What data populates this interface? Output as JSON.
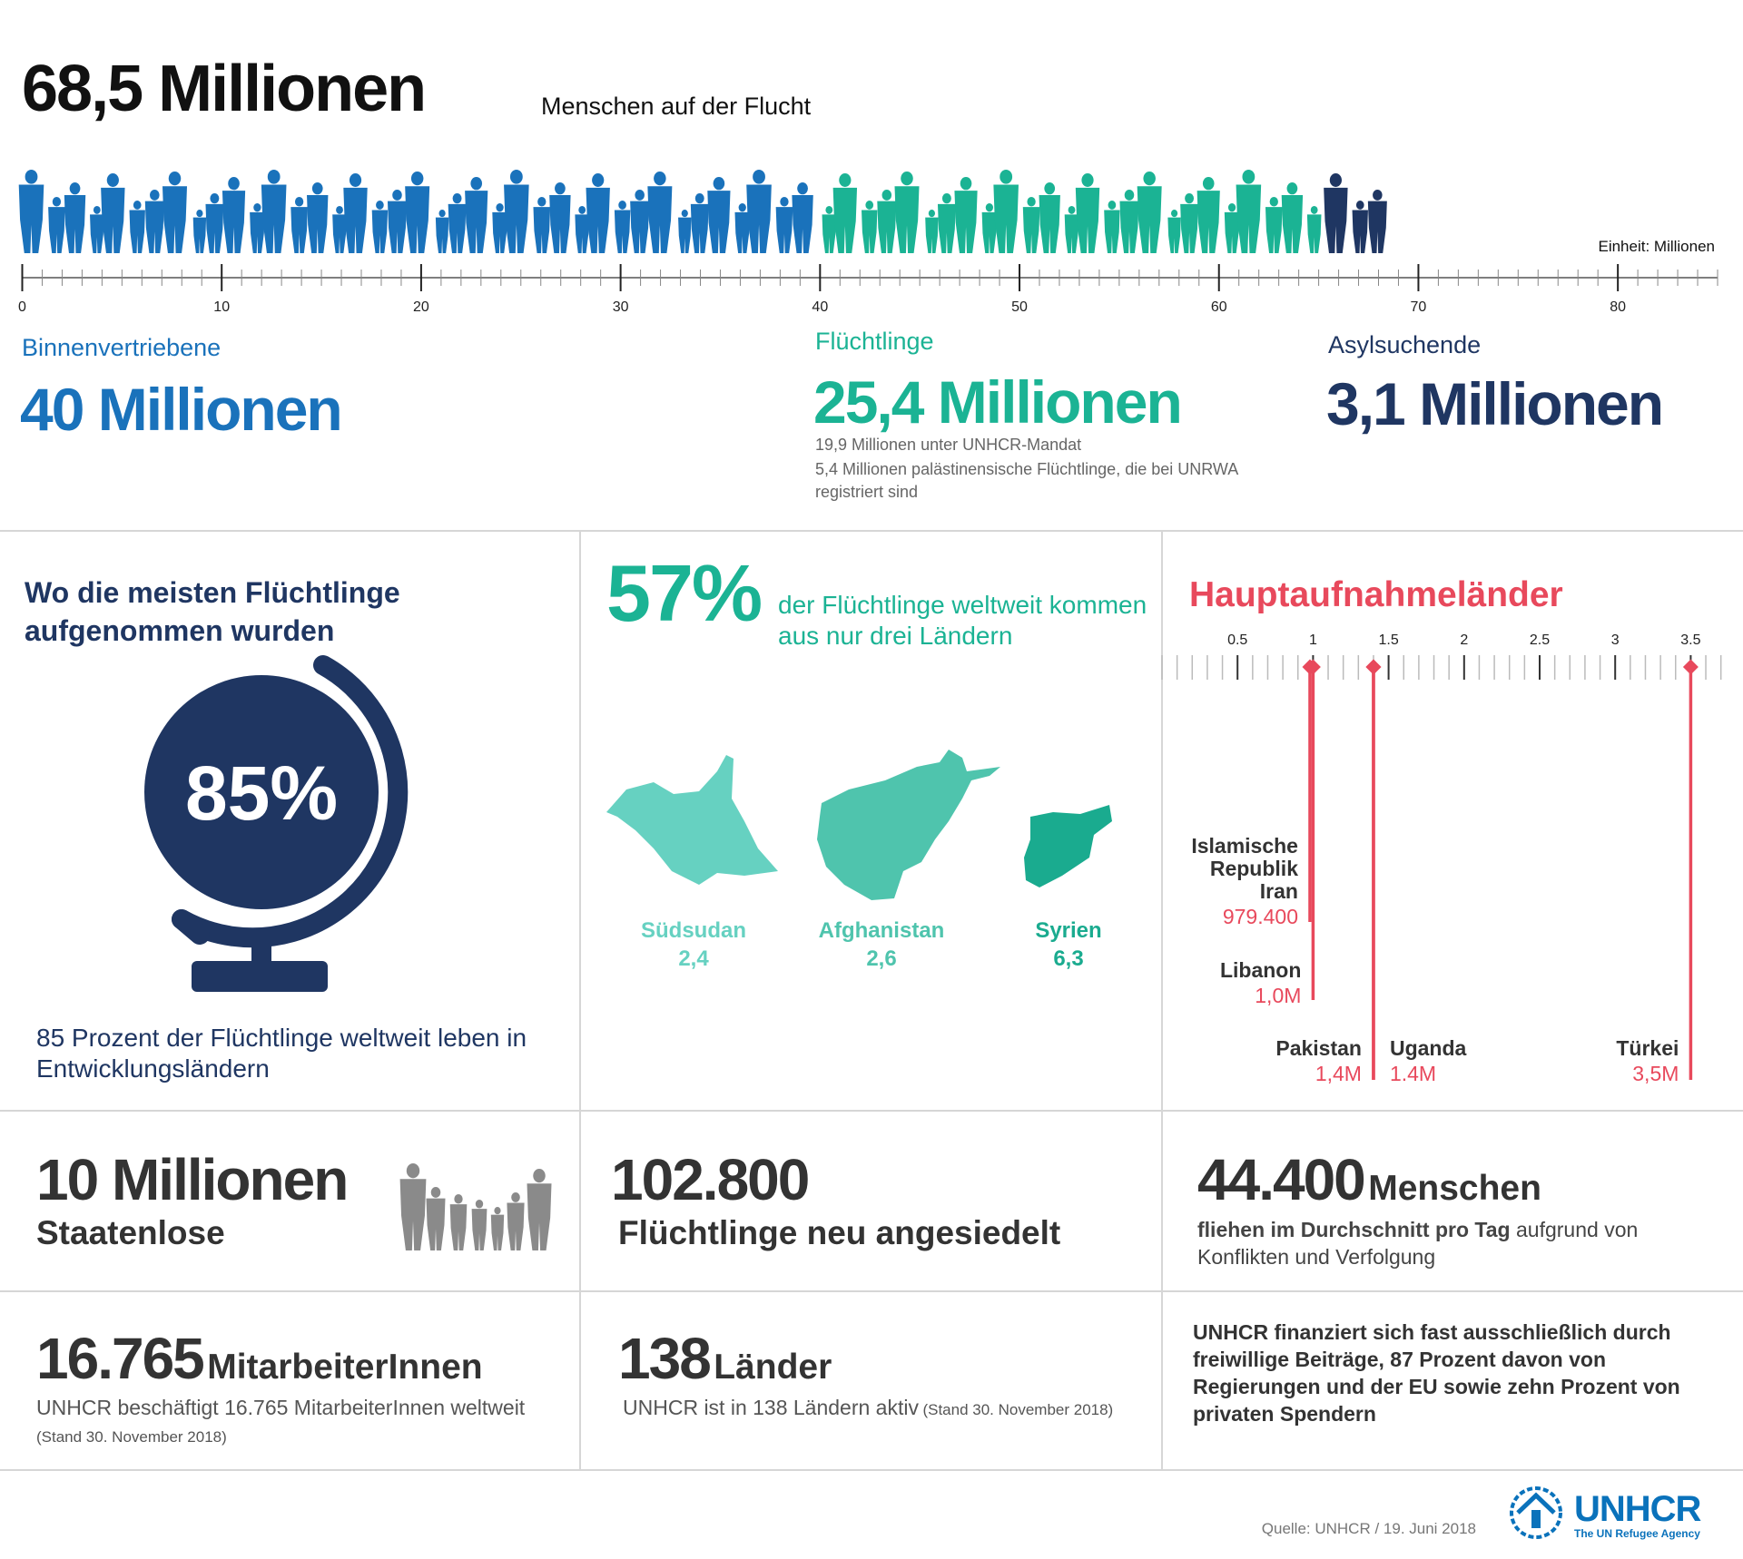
{
  "header": {
    "title": "68,5 Millionen",
    "subtitle": "Menschen auf der Flucht"
  },
  "people_scale": {
    "unit_label": "Einheit: Millionen",
    "xlim": [
      0,
      85
    ],
    "xticks": [
      0,
      10,
      20,
      30,
      40,
      50,
      60,
      70,
      80
    ],
    "segments": [
      {
        "name": "Binnenvertriebene",
        "value": 40,
        "label": "40 Millionen",
        "color": "#1a72bb"
      },
      {
        "name": "Flüchtlinge",
        "value": 25.4,
        "label": "25,4 Millionen",
        "color": "#1bb394",
        "notes": [
          "19,9 Millionen unter UNHCR-Mandat",
          "5,4 Millionen palästinensische Flüchtlinge, die bei UNRWA registriert sind"
        ]
      },
      {
        "name": "Asylsuchende",
        "value": 3.1,
        "label": "3,1 Millionen",
        "color": "#1f3662"
      }
    ]
  },
  "developing": {
    "heading": "Wo die meisten Flüchtlinge aufgenommen wurden",
    "percent": "85%",
    "text": "85 Prozent der Flüchtlinge weltweit leben in Entwicklungsländern"
  },
  "origins": {
    "percent": "57%",
    "text": "der Flüchtlinge weltweit kommen aus nur drei Ländern",
    "countries": [
      {
        "name": "Südsudan",
        "value": "2,4",
        "color": "#66d1c1"
      },
      {
        "name": "Afghanistan",
        "value": "2,6",
        "color": "#4fc4ad"
      },
      {
        "name": "Syrien",
        "value": "6,3",
        "color": "#1aab8f"
      }
    ]
  },
  "hosts": {
    "title": "Hauptaufnahmeländer",
    "color": "#e8495c",
    "xlim": [
      0,
      3.75
    ],
    "xticks": [
      0.5,
      1,
      1.5,
      2,
      2.5,
      3,
      3.5
    ],
    "countries": [
      {
        "name": "Islamische Republik Iran",
        "value": 0.9794,
        "label": "979.400"
      },
      {
        "name": "Libanon",
        "value": 1.0,
        "label": "1,0M"
      },
      {
        "name": "Pakistan",
        "value": 1.4,
        "label": "1,4M"
      },
      {
        "name": "Uganda",
        "value": 1.4,
        "label": "1.4M"
      },
      {
        "name": "Türkei",
        "value": 3.5,
        "label": "3,5M"
      }
    ]
  },
  "stats": {
    "stateless": {
      "value": "10 Millionen",
      "label": "Staatenlose"
    },
    "resettled": {
      "value": "102.800",
      "label": "Flüchtlinge neu angesiedelt"
    },
    "daily": {
      "value": "44.400",
      "unit": "Menschen",
      "text_bold": "fliehen im Durchschnitt pro Tag",
      "text": "aufgrund von Konflikten und Verfolgung"
    },
    "staff": {
      "value": "16.765",
      "unit": "MitarbeiterInnen",
      "text": "UNHCR beschäftigt 16.765 MitarbeiterInnen weltweit",
      "note": "(Stand 30. November 2018)"
    },
    "countries": {
      "value": "138",
      "unit": "Länder",
      "text": "UNHCR ist in 138 Ländern aktiv",
      "note": "(Stand 30. November 2018)"
    },
    "funding": "UNHCR finanziert sich fast ausschließlich durch freiwillige Beiträge, 87 Prozent davon von Regierungen und der EU sowie zehn Prozent von privaten Spendern"
  },
  "footer": {
    "source": "Quelle: UNHCR / 19. Juni 2018",
    "logo": "UNHCR",
    "logo_sub": "The UN Refugee Agency"
  }
}
